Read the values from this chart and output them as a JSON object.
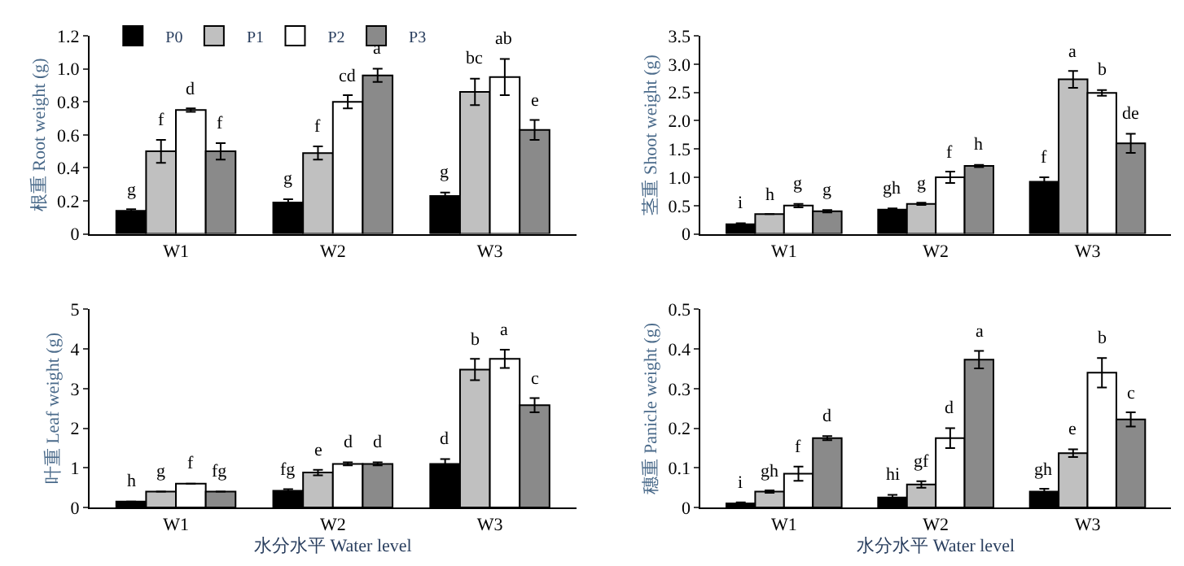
{
  "chart_data": [
    {
      "type": "bar",
      "ylabel": "根重 Root weight (g)",
      "categories": [
        "W1",
        "W2",
        "W3"
      ],
      "legend": "top left",
      "ylim": [
        0,
        1.2
      ],
      "yticks": [
        0,
        {
          "value": 0.2,
          "label": "0.2"
        },
        {
          "value": 0.4,
          "label": "0.4"
        },
        {
          "value": 0.6,
          "label": "0.6"
        },
        {
          "value": 0.8,
          "label": "0.8"
        },
        {
          "value": 1.0,
          "label": "1.0"
        },
        {
          "value": 1.2,
          "label": "1.2"
        }
      ],
      "series": [
        {
          "name": "P0",
          "color": "#000000",
          "values": [
            0.14,
            0.19,
            0.23
          ],
          "errors": [
            0.01,
            0.02,
            0.02
          ],
          "value_labels": [
            "g",
            "g",
            "g"
          ]
        },
        {
          "name": "P1",
          "color": "#c0c0c0",
          "values": [
            0.5,
            0.49,
            0.86
          ],
          "errors": [
            0.07,
            0.04,
            0.08
          ],
          "value_labels": [
            "f",
            "f",
            "bc"
          ]
        },
        {
          "name": "P2",
          "color": "#ffffff",
          "values": [
            0.75,
            0.8,
            0.95
          ],
          "errors": [
            0.01,
            0.04,
            0.11
          ],
          "value_labels": [
            "d",
            "cd",
            "ab"
          ]
        },
        {
          "name": "P3",
          "color": "#8a8a8a",
          "values": [
            0.5,
            0.96,
            0.63
          ],
          "errors": [
            0.05,
            0.04,
            0.06
          ],
          "value_labels": [
            "f",
            "a",
            "e"
          ]
        }
      ]
    },
    {
      "type": "bar",
      "ylabel": "茎重 Shoot weight (g)",
      "categories": [
        "W1",
        "W2",
        "W3"
      ],
      "legend": false,
      "ylim": [
        0,
        3.5
      ],
      "yticks": [
        0,
        0.5,
        {
          "value": 1.0,
          "label": "1.0"
        },
        1.5,
        {
          "value": 2.0,
          "label": "2.0"
        },
        2.5,
        {
          "value": 3.0,
          "label": "3.0"
        },
        3.5
      ],
      "series": [
        {
          "color": "#000000",
          "values": [
            0.17,
            0.43,
            0.92
          ],
          "errors": [
            0.02,
            0.02,
            0.08
          ],
          "value_labels": [
            "i",
            "gh",
            "f"
          ]
        },
        {
          "color": "#c0c0c0",
          "values": [
            0.35,
            0.53,
            2.73
          ],
          "errors": [
            0,
            0.02,
            0.15
          ],
          "value_labels": [
            "h",
            "g",
            "a"
          ]
        },
        {
          "color": "#ffffff",
          "values": [
            0.5,
            1.0,
            2.49
          ],
          "errors": [
            0.03,
            0.1,
            0.05
          ],
          "value_labels": [
            "g",
            "f",
            "b"
          ]
        },
        {
          "color": "#8a8a8a",
          "values": [
            0.4,
            1.2,
            1.6
          ],
          "errors": [
            0.02,
            0.02,
            0.17
          ],
          "value_labels": [
            "g",
            "h",
            "de"
          ]
        }
      ]
    },
    {
      "type": "bar",
      "ylabel": "叶重 Leaf weight (g)",
      "xlabel": "水分水平 Water level",
      "categories": [
        "W1",
        "W2",
        "W3"
      ],
      "legend": false,
      "ylim": [
        0,
        5
      ],
      "yticks": [
        0,
        1,
        2,
        3,
        4,
        5
      ],
      "series": [
        {
          "color": "#000000",
          "values": [
            0.15,
            0.42,
            1.1
          ],
          "errors": [
            0,
            0.04,
            0.12
          ],
          "value_labels": [
            "h",
            "fg",
            "d"
          ]
        },
        {
          "color": "#c0c0c0",
          "values": [
            0.4,
            0.88,
            3.48
          ],
          "errors": [
            0,
            0.07,
            0.27
          ],
          "value_labels": [
            "g",
            "e",
            "b"
          ]
        },
        {
          "color": "#ffffff",
          "values": [
            0.6,
            1.1,
            3.75
          ],
          "errors": [
            0,
            0.04,
            0.23
          ],
          "value_labels": [
            "f",
            "d",
            "a"
          ]
        },
        {
          "color": "#8a8a8a",
          "values": [
            0.4,
            1.1,
            2.58
          ],
          "errors": [
            0,
            0.04,
            0.18
          ],
          "value_labels": [
            "fg",
            "d",
            "c"
          ]
        }
      ]
    },
    {
      "type": "bar",
      "ylabel": "穗重 Panicle weight (g)",
      "xlabel": "水分水平 Water level",
      "categories": [
        "W1",
        "W2",
        "W3"
      ],
      "legend": false,
      "ylim": [
        0,
        0.5
      ],
      "yticks": [
        0,
        0.1,
        0.2,
        0.3,
        0.4,
        0.5
      ],
      "series": [
        {
          "color": "#000000",
          "values": [
            0.01,
            0.025,
            0.04
          ],
          "errors": [
            0.003,
            0.007,
            0.007
          ],
          "value_labels": [
            "i",
            "hi",
            "gh"
          ]
        },
        {
          "color": "#c0c0c0",
          "values": [
            0.04,
            0.058,
            0.137
          ],
          "errors": [
            0.003,
            0.008,
            0.01
          ],
          "value_labels": [
            "gh",
            "gf",
            "e"
          ]
        },
        {
          "color": "#ffffff",
          "values": [
            0.085,
            0.175,
            0.34
          ],
          "errors": [
            0.018,
            0.025,
            0.037
          ],
          "value_labels": [
            "f",
            "d",
            "b"
          ]
        },
        {
          "color": "#8a8a8a",
          "values": [
            0.175,
            0.373,
            0.222
          ],
          "errors": [
            0.005,
            0.022,
            0.018
          ],
          "value_labels": [
            "d",
            "a",
            "c"
          ]
        }
      ]
    }
  ]
}
